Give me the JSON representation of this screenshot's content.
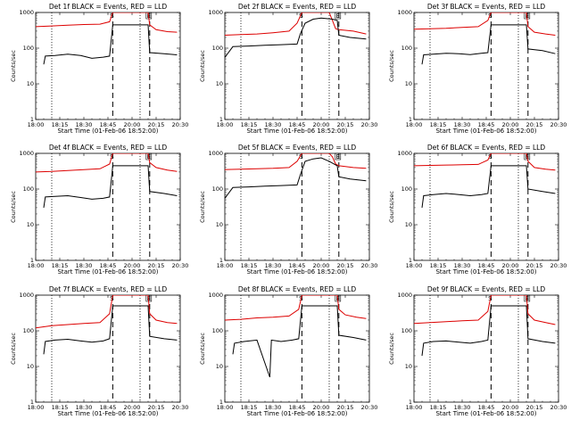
{
  "chart_data": {
    "type": "line",
    "layout": "3x3 grid of time-series panels",
    "x_tick_labels": [
      "18:00",
      "18:15",
      "18:30",
      "18:45",
      "20:00",
      "20:15",
      "20:30"
    ],
    "x_axis_minutes": [
      0,
      15,
      30,
      45,
      60,
      75,
      90
    ],
    "xlabel": "Start Time (01-Feb-06 18:52:00)",
    "ylabel": "Counts/sec",
    "yscale": "log",
    "ylim": [
      1,
      1000
    ],
    "y_tick_labels": [
      "1",
      "10",
      "100",
      "1000"
    ],
    "y_tick_values": [
      1,
      10,
      100,
      1000
    ],
    "series_colors": {
      "events": "#000000",
      "lld": "#dd0000"
    },
    "markers": [
      "S",
      "E"
    ],
    "panels": [
      {
        "title": "Det 1f BLACK = Events, RED = LLD",
        "dotted": [
          10,
          65
        ],
        "dashed": [
          48,
          71
        ],
        "events": [
          [
            5,
            35
          ],
          [
            6,
            60
          ],
          [
            12,
            62
          ],
          [
            20,
            68
          ],
          [
            28,
            62
          ],
          [
            35,
            52
          ],
          [
            42,
            56
          ],
          [
            46,
            60
          ],
          [
            48,
            450
          ],
          [
            70,
            450
          ],
          [
            71,
            75
          ],
          [
            80,
            70
          ],
          [
            88,
            65
          ]
        ],
        "lld": [
          [
            0,
            400
          ],
          [
            10,
            420
          ],
          [
            20,
            440
          ],
          [
            30,
            460
          ],
          [
            40,
            470
          ],
          [
            46,
            550
          ],
          [
            48,
            1000
          ],
          [
            70,
            1000
          ],
          [
            71,
            450
          ],
          [
            75,
            330
          ],
          [
            82,
            290
          ],
          [
            88,
            280
          ]
        ]
      },
      {
        "title": "Det 2f BLACK = Events, RED = LLD",
        "dotted": [
          10,
          65
        ],
        "dashed": [
          48,
          71
        ],
        "events": [
          [
            0,
            55
          ],
          [
            5,
            110
          ],
          [
            15,
            115
          ],
          [
            25,
            120
          ],
          [
            35,
            125
          ],
          [
            45,
            130
          ],
          [
            47,
            250
          ],
          [
            50,
            500
          ],
          [
            55,
            650
          ],
          [
            60,
            700
          ],
          [
            67,
            650
          ],
          [
            70,
            600
          ],
          [
            71,
            230
          ],
          [
            78,
            200
          ],
          [
            88,
            180
          ]
        ],
        "lld": [
          [
            0,
            230
          ],
          [
            10,
            240
          ],
          [
            20,
            250
          ],
          [
            30,
            270
          ],
          [
            40,
            300
          ],
          [
            45,
            500
          ],
          [
            48,
            1000
          ],
          [
            65,
            1000
          ],
          [
            67,
            600
          ],
          [
            69,
            350
          ],
          [
            71,
            330
          ],
          [
            80,
            300
          ],
          [
            88,
            250
          ]
        ]
      },
      {
        "title": "Det 3f BLACK = Events, RED = LLD",
        "dotted": [
          10,
          65
        ],
        "dashed": [
          48,
          71
        ],
        "events": [
          [
            5,
            35
          ],
          [
            6,
            65
          ],
          [
            12,
            68
          ],
          [
            20,
            72
          ],
          [
            28,
            70
          ],
          [
            35,
            66
          ],
          [
            42,
            72
          ],
          [
            46,
            75
          ],
          [
            48,
            450
          ],
          [
            70,
            450
          ],
          [
            71,
            95
          ],
          [
            80,
            85
          ],
          [
            88,
            70
          ]
        ],
        "lld": [
          [
            0,
            340
          ],
          [
            10,
            350
          ],
          [
            20,
            360
          ],
          [
            30,
            380
          ],
          [
            40,
            400
          ],
          [
            46,
            600
          ],
          [
            48,
            1000
          ],
          [
            70,
            1000
          ],
          [
            71,
            400
          ],
          [
            75,
            280
          ],
          [
            82,
            250
          ],
          [
            88,
            230
          ]
        ]
      },
      {
        "title": "Det 4f BLACK = Events, RED = LLD",
        "dotted": [
          10,
          65
        ],
        "dashed": [
          48,
          71
        ],
        "events": [
          [
            5,
            30
          ],
          [
            6,
            60
          ],
          [
            12,
            62
          ],
          [
            20,
            65
          ],
          [
            28,
            58
          ],
          [
            35,
            52
          ],
          [
            42,
            55
          ],
          [
            46,
            60
          ],
          [
            48,
            450
          ],
          [
            70,
            450
          ],
          [
            71,
            85
          ],
          [
            80,
            75
          ],
          [
            88,
            65
          ]
        ],
        "lld": [
          [
            0,
            300
          ],
          [
            10,
            310
          ],
          [
            20,
            330
          ],
          [
            30,
            350
          ],
          [
            40,
            370
          ],
          [
            46,
            500
          ],
          [
            48,
            1000
          ],
          [
            70,
            1000
          ],
          [
            71,
            550
          ],
          [
            75,
            400
          ],
          [
            82,
            340
          ],
          [
            88,
            310
          ]
        ]
      },
      {
        "title": "Det 5f BLACK = Events, RED = LLD",
        "dotted": [
          10,
          65
        ],
        "dashed": [
          48,
          71
        ],
        "events": [
          [
            0,
            55
          ],
          [
            5,
            110
          ],
          [
            15,
            115
          ],
          [
            25,
            120
          ],
          [
            35,
            125
          ],
          [
            45,
            130
          ],
          [
            47,
            250
          ],
          [
            50,
            600
          ],
          [
            55,
            700
          ],
          [
            60,
            750
          ],
          [
            65,
            600
          ],
          [
            70,
            450
          ],
          [
            71,
            220
          ],
          [
            78,
            190
          ],
          [
            88,
            170
          ]
        ],
        "lld": [
          [
            0,
            350
          ],
          [
            10,
            360
          ],
          [
            20,
            370
          ],
          [
            30,
            380
          ],
          [
            40,
            400
          ],
          [
            45,
            600
          ],
          [
            48,
            1000
          ],
          [
            65,
            1000
          ],
          [
            67,
            800
          ],
          [
            69,
            500
          ],
          [
            71,
            450
          ],
          [
            80,
            400
          ],
          [
            88,
            380
          ]
        ]
      },
      {
        "title": "Det 6f BLACK = Events, RED = LLD",
        "dotted": [
          10,
          65
        ],
        "dashed": [
          48,
          71
        ],
        "events": [
          [
            5,
            30
          ],
          [
            6,
            65
          ],
          [
            12,
            70
          ],
          [
            20,
            75
          ],
          [
            28,
            70
          ],
          [
            35,
            65
          ],
          [
            42,
            70
          ],
          [
            46,
            75
          ],
          [
            48,
            450
          ],
          [
            70,
            450
          ],
          [
            71,
            100
          ],
          [
            80,
            85
          ],
          [
            88,
            75
          ]
        ],
        "lld": [
          [
            0,
            450
          ],
          [
            10,
            460
          ],
          [
            20,
            470
          ],
          [
            30,
            480
          ],
          [
            40,
            490
          ],
          [
            46,
            650
          ],
          [
            48,
            1000
          ],
          [
            70,
            1000
          ],
          [
            71,
            600
          ],
          [
            75,
            400
          ],
          [
            82,
            360
          ],
          [
            88,
            340
          ]
        ]
      },
      {
        "title": "Det 7f BLACK = Events, RED = LLD",
        "dotted": [
          10,
          65
        ],
        "dashed": [
          48,
          71
        ],
        "events": [
          [
            5,
            22
          ],
          [
            6,
            50
          ],
          [
            12,
            55
          ],
          [
            20,
            58
          ],
          [
            28,
            52
          ],
          [
            35,
            48
          ],
          [
            42,
            52
          ],
          [
            46,
            60
          ],
          [
            48,
            500
          ],
          [
            70,
            500
          ],
          [
            71,
            70
          ],
          [
            80,
            60
          ],
          [
            88,
            55
          ]
        ],
        "lld": [
          [
            0,
            120
          ],
          [
            10,
            140
          ],
          [
            20,
            150
          ],
          [
            30,
            160
          ],
          [
            40,
            170
          ],
          [
            46,
            300
          ],
          [
            48,
            1000
          ],
          [
            70,
            1000
          ],
          [
            71,
            300
          ],
          [
            75,
            200
          ],
          [
            82,
            170
          ],
          [
            88,
            160
          ]
        ]
      },
      {
        "title": "Det 8f BLACK = Events, RED = LLD",
        "dotted": [
          10,
          65
        ],
        "dashed": [
          48,
          71
        ],
        "events": [
          [
            5,
            22
          ],
          [
            6,
            45
          ],
          [
            12,
            50
          ],
          [
            20,
            55
          ],
          [
            28,
            5
          ],
          [
            29,
            55
          ],
          [
            35,
            50
          ],
          [
            42,
            55
          ],
          [
            46,
            60
          ],
          [
            48,
            500
          ],
          [
            70,
            500
          ],
          [
            71,
            75
          ],
          [
            80,
            65
          ],
          [
            88,
            55
          ]
        ],
        "lld": [
          [
            0,
            200
          ],
          [
            10,
            210
          ],
          [
            20,
            230
          ],
          [
            30,
            240
          ],
          [
            40,
            260
          ],
          [
            46,
            400
          ],
          [
            48,
            1000
          ],
          [
            70,
            1000
          ],
          [
            71,
            400
          ],
          [
            75,
            280
          ],
          [
            82,
            240
          ],
          [
            88,
            220
          ]
        ]
      },
      {
        "title": "Det 9f BLACK = Events, RED = LLD",
        "dotted": [
          10,
          65
        ],
        "dashed": [
          48,
          71
        ],
        "events": [
          [
            5,
            20
          ],
          [
            6,
            45
          ],
          [
            12,
            50
          ],
          [
            20,
            52
          ],
          [
            28,
            48
          ],
          [
            35,
            45
          ],
          [
            42,
            50
          ],
          [
            46,
            55
          ],
          [
            48,
            500
          ],
          [
            70,
            500
          ],
          [
            71,
            60
          ],
          [
            80,
            50
          ],
          [
            88,
            45
          ]
        ],
        "lld": [
          [
            0,
            160
          ],
          [
            10,
            170
          ],
          [
            20,
            180
          ],
          [
            30,
            190
          ],
          [
            40,
            200
          ],
          [
            46,
            350
          ],
          [
            48,
            1000
          ],
          [
            70,
            1000
          ],
          [
            71,
            300
          ],
          [
            75,
            200
          ],
          [
            82,
            170
          ],
          [
            88,
            150
          ]
        ]
      }
    ]
  }
}
